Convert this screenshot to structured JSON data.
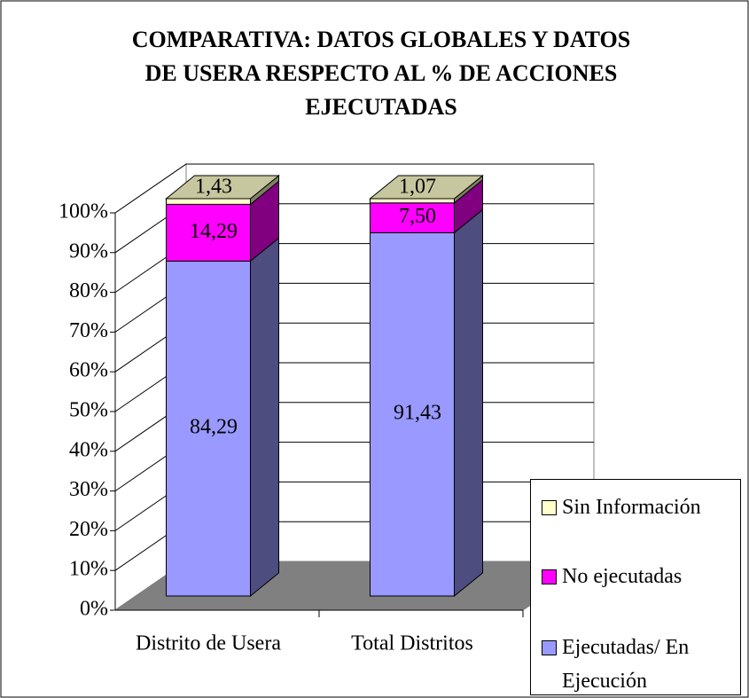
{
  "chart_data": {
    "type": "bar3d_stacked",
    "title": "COMPARATIVA: DATOS GLOBALES Y DATOS DE USERA RESPECTO AL % DE ACCIONES EJECUTADAS",
    "categories": [
      "Distrito de Usera",
      "Total Distritos"
    ],
    "series": [
      {
        "name": "Ejecutadas/ En Ejecución",
        "color": "#9999ff",
        "values": [
          84.29,
          91.43
        ],
        "value_labels": [
          "84,29",
          "91,43"
        ]
      },
      {
        "name": "No ejecutadas",
        "color": "#ff00ff",
        "values": [
          14.29,
          7.5
        ],
        "value_labels": [
          "14,29",
          "7,50"
        ]
      },
      {
        "name": "Sin Información",
        "color": "#ffffcc",
        "values": [
          1.43,
          1.07
        ],
        "value_labels": [
          "1,43",
          "1,07"
        ]
      }
    ],
    "ylim": [
      0,
      100
    ],
    "yticks": [
      {
        "value": 0,
        "label": "0%"
      },
      {
        "value": 10,
        "label": "10%"
      },
      {
        "value": 20,
        "label": "20%"
      },
      {
        "value": 30,
        "label": "30%"
      },
      {
        "value": 40,
        "label": "40%"
      },
      {
        "value": 50,
        "label": "50%"
      },
      {
        "value": 60,
        "label": "60%"
      },
      {
        "value": 70,
        "label": "70%"
      },
      {
        "value": 80,
        "label": "80%"
      },
      {
        "value": 90,
        "label": "90%"
      },
      {
        "value": 100,
        "label": "100%"
      }
    ],
    "grid": true
  }
}
